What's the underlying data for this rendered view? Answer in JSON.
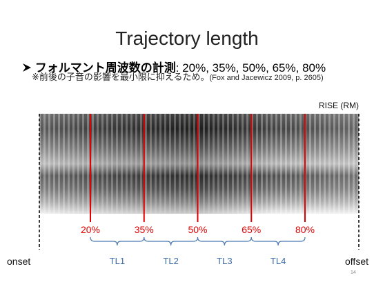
{
  "slide": {
    "title": "Trajectory length",
    "bullet": {
      "heading": "フォルマント周波数の計測",
      "detail": ": 20%, 35%, 50%, 65%, 80%"
    },
    "note": "※前後の子音の影響を最小限に抑えるため。",
    "citation": "(Fox and Jacewicz 2009, p. 2605)",
    "speaker": "RISE (RM)",
    "markers": [
      "20%",
      "35%",
      "50%",
      "65%",
      "80%"
    ],
    "segments": [
      "TL1",
      "TL2",
      "TL3",
      "TL4"
    ],
    "onset": "onset",
    "offset": "offset",
    "page": "14"
  }
}
